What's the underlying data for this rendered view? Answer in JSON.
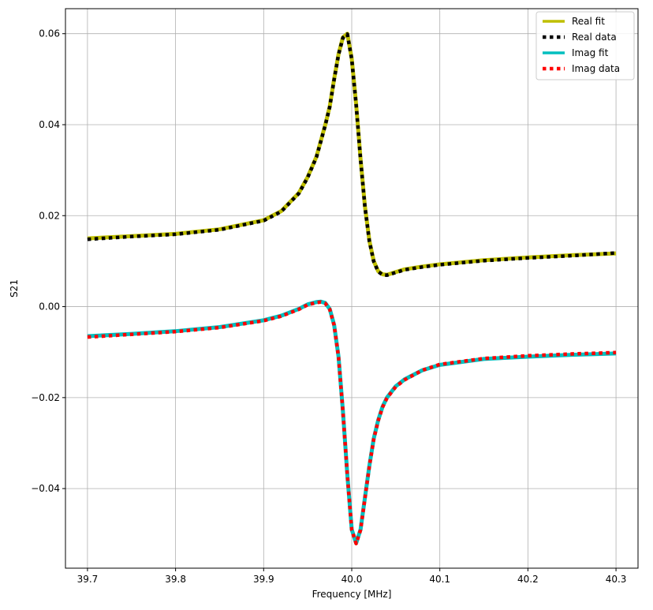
{
  "chart_data": {
    "type": "line",
    "title": "",
    "xlabel": "Frequency [MHz]",
    "ylabel": "S21",
    "xlim": [
      39.675,
      40.325
    ],
    "ylim": [
      -0.0575,
      0.0655
    ],
    "grid": true,
    "legend_position": "top-right",
    "x_ticks": [
      39.7,
      39.8,
      39.9,
      40.0,
      40.1,
      40.2,
      40.3
    ],
    "x_tick_labels": [
      "39.7",
      "39.8",
      "39.9",
      "40.0",
      "40.1",
      "40.2",
      "40.3"
    ],
    "y_ticks": [
      -0.04,
      -0.02,
      0.0,
      0.02,
      0.04,
      0.06
    ],
    "y_tick_labels": [
      "−0.04",
      "−0.02",
      "0.00",
      "0.02",
      "0.04",
      "0.06"
    ],
    "x": [
      39.7,
      39.75,
      39.8,
      39.85,
      39.9,
      39.92,
      39.94,
      39.95,
      39.96,
      39.965,
      39.97,
      39.975,
      39.98,
      39.985,
      39.99,
      39.995,
      40.0,
      40.005,
      40.01,
      40.015,
      40.02,
      40.025,
      40.03,
      40.035,
      40.04,
      40.05,
      40.06,
      40.08,
      40.1,
      40.15,
      40.2,
      40.25,
      40.3
    ],
    "series": [
      {
        "name": "Real fit",
        "style": "solid",
        "color": "#bfbf00",
        "values": [
          0.015,
          0.0155,
          0.016,
          0.017,
          0.019,
          0.021,
          0.025,
          0.0285,
          0.033,
          0.0365,
          0.04,
          0.044,
          0.05,
          0.0555,
          0.0592,
          0.06,
          0.0545,
          0.0445,
          0.0325,
          0.022,
          0.0145,
          0.01,
          0.0078,
          0.0071,
          0.007,
          0.0076,
          0.0082,
          0.0088,
          0.0093,
          0.0102,
          0.0108,
          0.0113,
          0.0117
        ]
      },
      {
        "name": "Real data",
        "style": "dotted",
        "color": "#000000",
        "values": [
          0.0148,
          0.0154,
          0.0159,
          0.0169,
          0.0189,
          0.0209,
          0.0249,
          0.0284,
          0.0329,
          0.0364,
          0.0399,
          0.0439,
          0.0499,
          0.0554,
          0.0591,
          0.0599,
          0.0544,
          0.0444,
          0.0324,
          0.0219,
          0.0144,
          0.0099,
          0.0077,
          0.007,
          0.0069,
          0.0075,
          0.0081,
          0.0087,
          0.0092,
          0.0101,
          0.0107,
          0.0112,
          0.0118
        ]
      },
      {
        "name": "Imag fit",
        "style": "solid",
        "color": "#00bfbf",
        "values": [
          -0.0065,
          -0.006,
          -0.0054,
          -0.0045,
          -0.003,
          -0.002,
          -0.0005,
          0.0005,
          0.001,
          0.0011,
          0.0008,
          -0.0005,
          -0.004,
          -0.011,
          -0.023,
          -0.037,
          -0.049,
          -0.052,
          -0.049,
          -0.042,
          -0.035,
          -0.029,
          -0.025,
          -0.022,
          -0.02,
          -0.0175,
          -0.016,
          -0.014,
          -0.0128,
          -0.0115,
          -0.011,
          -0.0106,
          -0.0103
        ]
      },
      {
        "name": "Imag data",
        "style": "dotted",
        "color": "#ff0000",
        "values": [
          -0.0067,
          -0.0061,
          -0.0055,
          -0.0046,
          -0.0031,
          -0.0021,
          -0.0006,
          0.0004,
          0.0009,
          0.001,
          0.0007,
          -0.0006,
          -0.0041,
          -0.0111,
          -0.0231,
          -0.0371,
          -0.0491,
          -0.0521,
          -0.0491,
          -0.0421,
          -0.0351,
          -0.0291,
          -0.0251,
          -0.0221,
          -0.0201,
          -0.0176,
          -0.0161,
          -0.014,
          -0.0127,
          -0.0114,
          -0.0108,
          -0.0104,
          -0.0101
        ]
      }
    ]
  }
}
